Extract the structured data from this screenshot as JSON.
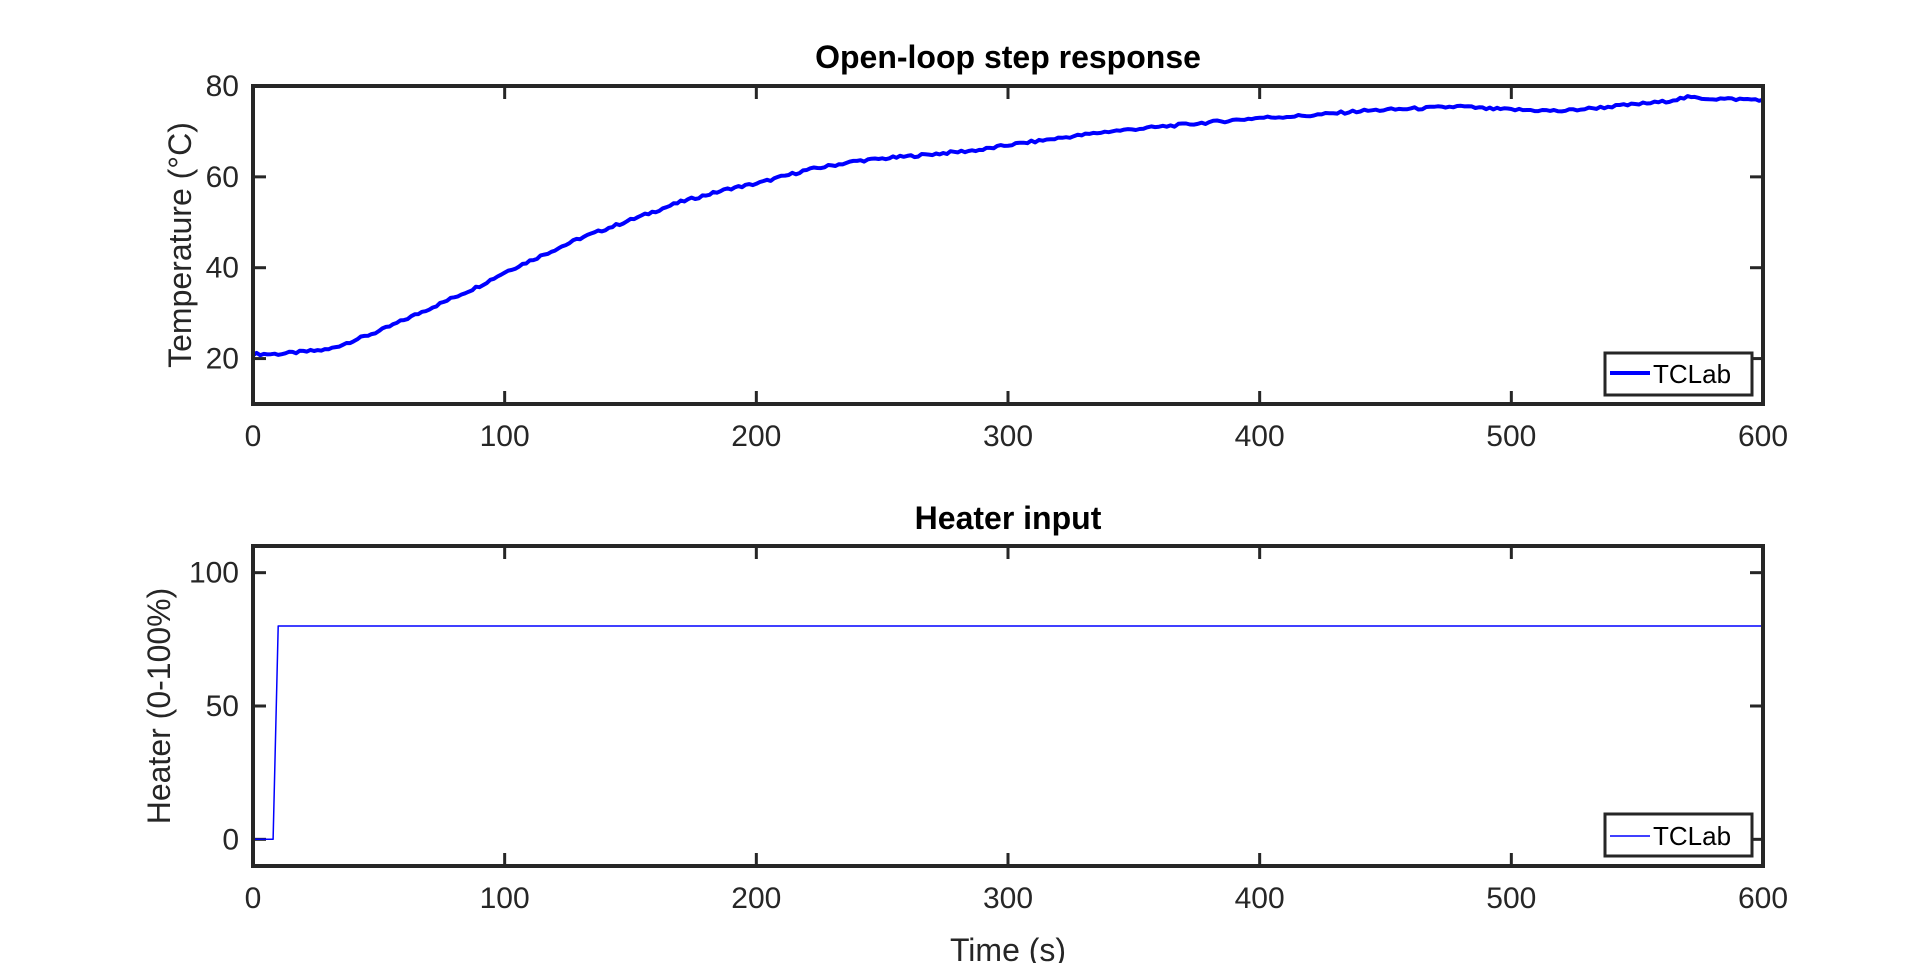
{
  "chart_data": [
    {
      "type": "line",
      "title": "Open-loop step response",
      "xlabel": "",
      "ylabel": "Temperature (°C)",
      "xlim": [
        0,
        600
      ],
      "ylim": [
        10,
        80
      ],
      "xticks": [
        "0",
        "100",
        "200",
        "300",
        "400",
        "500",
        "600"
      ],
      "yticks": [
        "20",
        "40",
        "60",
        "80"
      ],
      "legend_position": "bottom-right",
      "line_color": "#0000ff",
      "series": [
        {
          "name": "TCLab",
          "x": [
            0,
            10,
            20,
            30,
            40,
            50,
            60,
            70,
            80,
            90,
            100,
            110,
            120,
            130,
            140,
            150,
            160,
            170,
            180,
            190,
            200,
            210,
            220,
            230,
            240,
            250,
            260,
            270,
            280,
            290,
            300,
            320,
            340,
            360,
            380,
            400,
            420,
            440,
            460,
            480,
            490,
            500,
            520,
            540,
            560,
            570,
            580,
            600
          ],
          "y": [
            21,
            21,
            21.5,
            22,
            24,
            26,
            28.5,
            31,
            33.5,
            36,
            39,
            41.5,
            44,
            46.5,
            48.5,
            50.5,
            52.5,
            54.5,
            56,
            57.5,
            58.5,
            60,
            61.5,
            62.5,
            63.5,
            64,
            64.5,
            65,
            65.5,
            66,
            67,
            68.5,
            70,
            71,
            72,
            73,
            73.5,
            74.5,
            75,
            75.5,
            75,
            74.8,
            74.5,
            75.5,
            76.5,
            77.5,
            77.2,
            77
          ]
        }
      ]
    },
    {
      "type": "line",
      "title": "Heater input",
      "xlabel": "Time (s)",
      "ylabel": "Heater (0-100%)",
      "xlim": [
        0,
        600
      ],
      "ylim": [
        -10,
        110
      ],
      "xticks": [
        "0",
        "100",
        "200",
        "300",
        "400",
        "500",
        "600"
      ],
      "yticks": [
        "0",
        "50",
        "100"
      ],
      "legend_position": "bottom-right",
      "line_color": "#0000ff",
      "series": [
        {
          "name": "TCLab",
          "x": [
            0,
            8,
            10,
            600
          ],
          "y": [
            0,
            0,
            80,
            80
          ]
        }
      ]
    }
  ]
}
